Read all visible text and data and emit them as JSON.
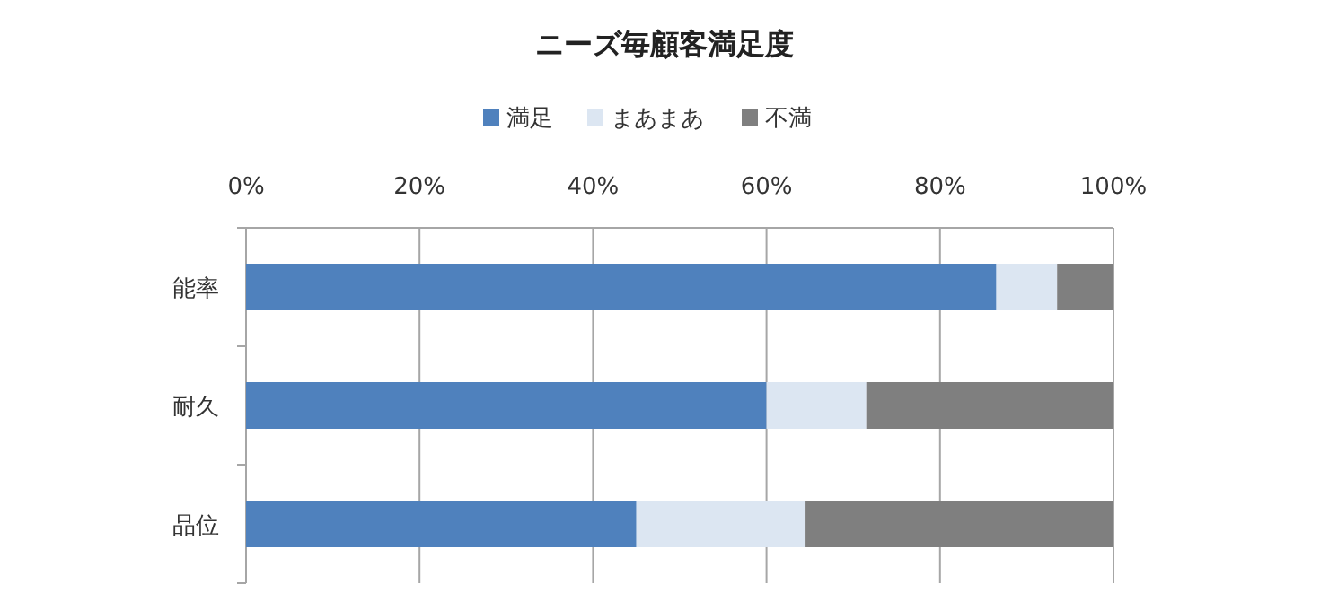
{
  "chart_data": {
    "type": "bar",
    "title": "ニーズ毎顧客満足度",
    "orientation": "horizontal",
    "stacked": true,
    "categories": [
      "能率",
      "耐久",
      "品位"
    ],
    "series": [
      {
        "name": "満足",
        "color": "#4f81bd",
        "values": [
          86.5,
          60,
          45
        ]
      },
      {
        "name": "まあまあ",
        "color": "#dce6f2",
        "values": [
          7,
          11.5,
          19.5
        ]
      },
      {
        "name": "不満",
        "color": "#7f7f7f",
        "values": [
          6.5,
          28.5,
          35.5
        ]
      }
    ],
    "xlim": [
      0,
      100
    ],
    "xticks": [
      {
        "value": 0,
        "label": "0%"
      },
      {
        "value": 20,
        "label": "20%"
      },
      {
        "value": 40,
        "label": "40%"
      },
      {
        "value": 60,
        "label": "60%"
      },
      {
        "value": 80,
        "label": "80%"
      },
      {
        "value": 100,
        "label": "100%"
      }
    ],
    "grid": "x",
    "legend": "top"
  }
}
